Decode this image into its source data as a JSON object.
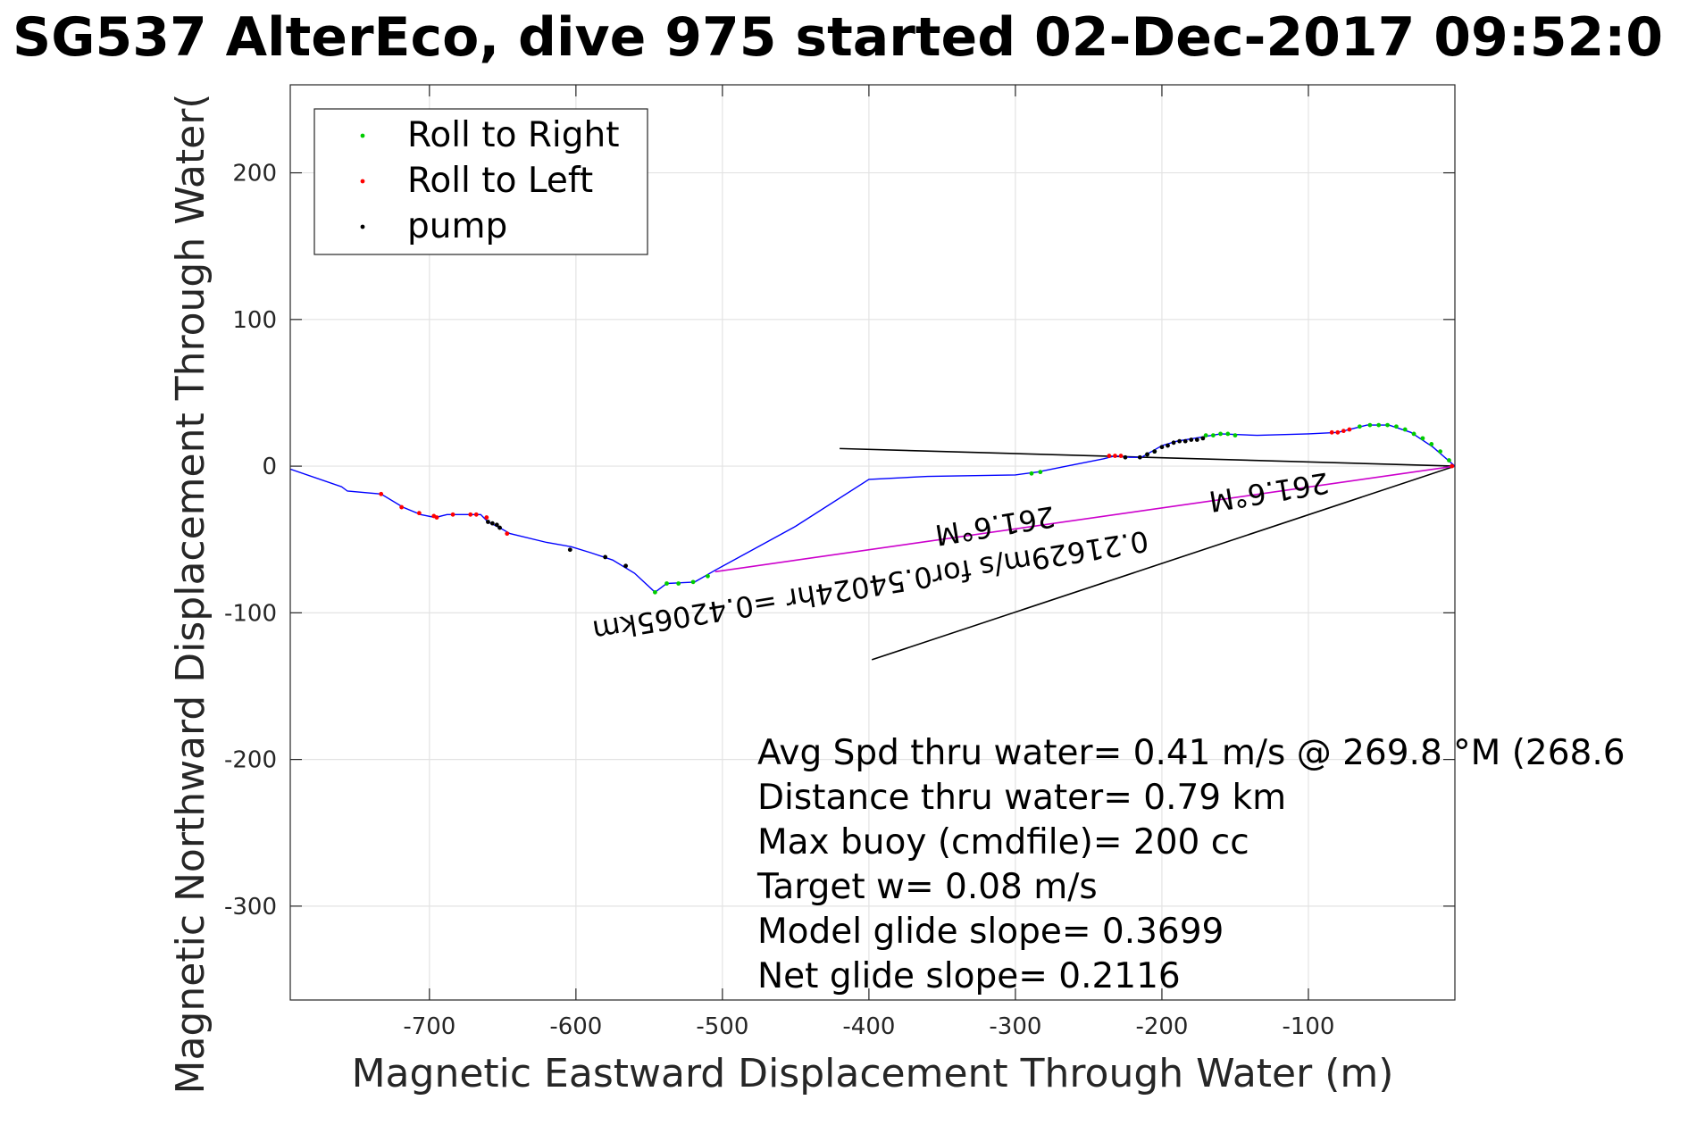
{
  "title": "SG537 AlterEco, dive 975 started 02-Dec-2017 09:52:0",
  "chart_data": {
    "type": "line",
    "xlabel": "Magnetic Eastward Displacement Through Water (m)",
    "ylabel": "Magnetic Northward Displacement Through Water(",
    "xlim": [
      -795,
      0
    ],
    "ylim": [
      -364,
      260
    ],
    "x_ticks": [
      -700,
      -600,
      -500,
      -400,
      -300,
      -200,
      -100
    ],
    "y_ticks": [
      200,
      100,
      0,
      -100,
      -200,
      -300
    ],
    "grid": true,
    "legend_position": "top-left",
    "legend": [
      {
        "label": "Roll to Right",
        "color": "#00cc00"
      },
      {
        "label": "Roll to Left",
        "color": "#ff0000"
      },
      {
        "label": "pump",
        "color": "#000000"
      }
    ],
    "track_color": "#0000ff",
    "track": [
      [
        -795,
        -2
      ],
      [
        -760,
        -14
      ],
      [
        -756,
        -17
      ],
      [
        -733,
        -19
      ],
      [
        -718,
        -28
      ],
      [
        -706,
        -33
      ],
      [
        -696,
        -35
      ],
      [
        -688,
        -33
      ],
      [
        -675,
        -33
      ],
      [
        -665,
        -33
      ],
      [
        -660,
        -38
      ],
      [
        -652,
        -42
      ],
      [
        -645,
        -46
      ],
      [
        -620,
        -52
      ],
      [
        -603,
        -55
      ],
      [
        -590,
        -59
      ],
      [
        -575,
        -64
      ],
      [
        -560,
        -73
      ],
      [
        -546,
        -86
      ],
      [
        -538,
        -80
      ],
      [
        -519,
        -79
      ],
      [
        -505,
        -71
      ],
      [
        -450,
        -41
      ],
      [
        -400,
        -9
      ],
      [
        -360,
        -7
      ],
      [
        -300,
        -6
      ],
      [
        -285,
        -4
      ],
      [
        -265,
        0
      ],
      [
        -240,
        5
      ],
      [
        -232,
        7
      ],
      [
        -222,
        6
      ],
      [
        -214,
        6
      ],
      [
        -207,
        10
      ],
      [
        -200,
        14
      ],
      [
        -190,
        17
      ],
      [
        -178,
        19
      ],
      [
        -160,
        22
      ],
      [
        -135,
        21
      ],
      [
        -100,
        22
      ],
      [
        -80,
        23
      ],
      [
        -60,
        28
      ],
      [
        -45,
        28
      ],
      [
        -30,
        23
      ],
      [
        -15,
        13
      ],
      [
        0,
        0
      ]
    ],
    "roll_right_points": [
      [
        -546,
        -86
      ],
      [
        -538,
        -80
      ],
      [
        -530,
        -80
      ],
      [
        -520,
        -79
      ],
      [
        -510,
        -75
      ],
      [
        -289,
        -5
      ],
      [
        -283,
        -4
      ],
      [
        -170,
        21
      ],
      [
        -165,
        21
      ],
      [
        -160,
        22
      ],
      [
        -155,
        22
      ],
      [
        -150,
        21
      ],
      [
        -65,
        27
      ],
      [
        -58,
        28
      ],
      [
        -52,
        28
      ],
      [
        -46,
        28
      ],
      [
        -40,
        27
      ],
      [
        -34,
        25
      ],
      [
        -28,
        22
      ],
      [
        -22,
        19
      ],
      [
        -16,
        15
      ],
      [
        -10,
        10
      ],
      [
        -4,
        4
      ],
      [
        -210,
        8
      ],
      [
        -205,
        10
      ]
    ],
    "roll_left_points": [
      [
        -733,
        -19
      ],
      [
        -719,
        -28
      ],
      [
        -707,
        -32
      ],
      [
        -697,
        -34
      ],
      [
        -695,
        -35
      ],
      [
        -684,
        -33
      ],
      [
        -672,
        -33
      ],
      [
        -668,
        -33
      ],
      [
        -661,
        -35
      ],
      [
        -647,
        -46
      ],
      [
        -236,
        7
      ],
      [
        -232,
        7
      ],
      [
        -228,
        7
      ],
      [
        -84,
        23
      ],
      [
        -80,
        23
      ],
      [
        -76,
        24
      ],
      [
        -72,
        25
      ],
      [
        -2,
        0
      ]
    ],
    "pump_points": [
      [
        -660,
        -38
      ],
      [
        -657,
        -39
      ],
      [
        -654,
        -40
      ],
      [
        -652,
        -42
      ],
      [
        -604,
        -57
      ],
      [
        -580,
        -62
      ],
      [
        -566,
        -68
      ],
      [
        -225,
        6
      ],
      [
        -215,
        6
      ],
      [
        -210,
        8
      ],
      [
        -205,
        10
      ],
      [
        -200,
        13
      ],
      [
        -196,
        14
      ],
      [
        -192,
        16
      ],
      [
        -188,
        17
      ],
      [
        -184,
        17
      ],
      [
        -180,
        18
      ],
      [
        -176,
        18
      ],
      [
        -172,
        19
      ]
    ],
    "lines": [
      {
        "color": "#000000",
        "points": [
          [
            -420,
            12
          ],
          [
            0,
            0
          ]
        ]
      },
      {
        "color": "#000000",
        "points": [
          [
            -398,
            -132
          ],
          [
            0,
            0
          ]
        ]
      },
      {
        "color": "#cc00cc",
        "points": [
          [
            -505,
            -72
          ],
          [
            0,
            0
          ]
        ]
      }
    ],
    "rotated_labels": [
      {
        "text": "0.21629m/s for0.54024hr =0.42065km",
        "x": -400,
        "y": -75,
        "angle": 170.7
      },
      {
        "text": "261.6°M",
        "x": -315,
        "y": -34,
        "angle": 170.7
      },
      {
        "text": "261.6°M",
        "x": -128,
        "y": -11,
        "angle": 170.7
      }
    ],
    "annotations": [
      "Avg Spd thru water=  0.41 m/s @ 269.8 °M (268.6",
      "Distance thru water=  0.79 km",
      "Max buoy (cmdfile)= 200 cc",
      "Target w= 0.08 m/s",
      "Model glide slope= 0.3699",
      "Net glide slope= 0.2116"
    ]
  }
}
